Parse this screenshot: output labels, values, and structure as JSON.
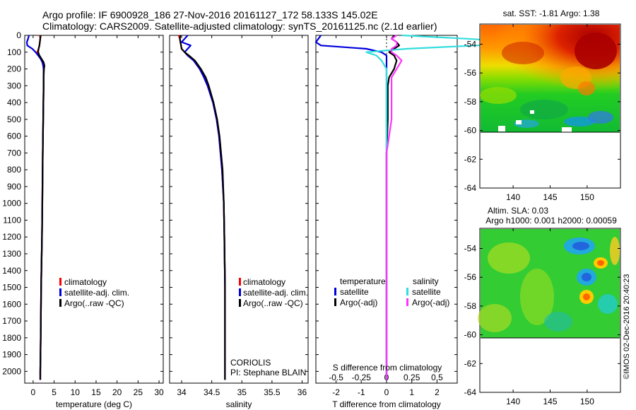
{
  "header": {
    "line1": "Argo profile: IF 6900928_186 27-Nov-2016 20161127_172 58.133S 145.02E",
    "line2": "Climatology: CARS2009. Satellite-adjusted climatology: synTS_20161125.nc (2.1d earlier)"
  },
  "watermark": "©IMOS 02-Dec-2016 20:40:23",
  "colors": {
    "climatology": "#ff0000",
    "satellite": "#0000dd",
    "argo": "#000000",
    "sat_salinity": "#33dddd",
    "argo_salinity": "#ff33ff"
  },
  "profile_plots": {
    "ylim": [
      2070,
      0
    ],
    "yticks": [
      0,
      100,
      200,
      300,
      400,
      500,
      600,
      700,
      800,
      900,
      1000,
      1100,
      1200,
      1300,
      1400,
      1500,
      1600,
      1700,
      1800,
      1900,
      2000
    ],
    "ytick_labels": [
      "0",
      "100",
      "200",
      "300",
      "400",
      "500",
      "600",
      "700",
      "800",
      "900",
      "1000",
      "1100",
      "1200",
      "1300",
      "1400",
      "1500",
      "1600",
      "1700",
      "1800",
      "1900",
      "2000"
    ]
  },
  "chart_data": [
    {
      "type": "line",
      "id": "temperature",
      "xlabel": "temperature (deg C)",
      "xlim": [
        -2,
        31
      ],
      "xticks": [
        0,
        5,
        10,
        15,
        20,
        25,
        30
      ],
      "xtick_labels": [
        "0",
        "5",
        "10",
        "15",
        "20",
        "25",
        "30"
      ],
      "legend": [
        "climatology",
        "satellite-adj. clim.",
        "Argo(..raw -QC)"
      ],
      "depth": [
        0,
        20,
        40,
        60,
        80,
        100,
        120,
        140,
        160,
        180,
        200,
        250,
        300,
        400,
        500,
        700,
        1000,
        1200,
        1500,
        1800,
        2000,
        2050
      ],
      "series": [
        {
          "name": "climatology",
          "values": [
            1.6,
            1.7,
            1.6,
            1.5,
            1.3,
            1.0,
            1.2,
            1.8,
            2.2,
            2.4,
            2.5,
            2.5,
            2.5,
            2.45,
            2.4,
            2.3,
            2.2,
            2.1,
            1.9,
            1.8,
            1.7,
            1.7
          ]
        },
        {
          "name": "satellite-adj. clim.",
          "values": [
            -1.0,
            -1.2,
            -1.5,
            -1.4,
            -0.2,
            0.6,
            1.2,
            1.8,
            2.2,
            2.4,
            2.5,
            2.5,
            2.5,
            2.45,
            2.4,
            2.3,
            2.2,
            2.1,
            1.9,
            1.8,
            1.7,
            1.7
          ]
        },
        {
          "name": "Argo(..raw -QC)",
          "values": [
            1.8,
            1.7,
            1.6,
            1.5,
            1.3,
            1.2,
            1.5,
            2.0,
            2.5,
            2.7,
            2.6,
            2.5,
            2.5,
            2.45,
            2.4,
            2.3,
            2.2,
            2.1,
            1.9,
            1.8,
            1.7,
            1.7
          ]
        }
      ],
      "annotations": []
    },
    {
      "type": "line",
      "id": "salinity",
      "xlabel": "salinity",
      "xlim": [
        33.8,
        36.1
      ],
      "xticks": [
        34,
        34.5,
        35,
        35.5,
        36
      ],
      "xtick_labels": [
        "34",
        "34.5",
        "35",
        "35.5",
        "36"
      ],
      "legend": [
        "climatology",
        "satellite-adj. clim.",
        "Argo(..raw -QC)"
      ],
      "depth": [
        0,
        20,
        40,
        60,
        80,
        100,
        120,
        150,
        200,
        250,
        300,
        400,
        500,
        600,
        800,
        1000,
        1200,
        1500,
        1800,
        2000,
        2050
      ],
      "series": [
        {
          "name": "climatology",
          "values": [
            33.95,
            33.97,
            33.98,
            33.99,
            34.0,
            34.05,
            34.1,
            34.2,
            34.3,
            34.37,
            34.43,
            34.52,
            34.58,
            34.62,
            34.67,
            34.7,
            34.71,
            34.72,
            34.72,
            34.72,
            34.72
          ]
        },
        {
          "name": "satellite-adj. clim.",
          "values": [
            34.1,
            34.05,
            34.0,
            34.15,
            34.1,
            34.05,
            34.1,
            34.2,
            34.3,
            34.37,
            34.43,
            34.52,
            34.58,
            34.62,
            34.67,
            34.7,
            34.71,
            34.72,
            34.72,
            34.72,
            34.72
          ]
        },
        {
          "name": "Argo(..raw -QC)",
          "values": [
            33.98,
            33.97,
            33.98,
            33.99,
            34.0,
            34.05,
            34.12,
            34.22,
            34.32,
            34.4,
            34.45,
            34.53,
            34.59,
            34.63,
            34.68,
            34.7,
            34.71,
            34.72,
            34.72,
            34.72,
            34.72
          ]
        }
      ],
      "annotations": [
        "CORIOLIS",
        "PI: Stephane BLAIN"
      ]
    },
    {
      "type": "line",
      "id": "difference",
      "xlabel": "T difference from climatology",
      "xlabel_top": "S difference from climatology",
      "xlim": [
        -2.8,
        2.8
      ],
      "xticks": [
        -2,
        -1,
        0,
        1,
        2
      ],
      "xtick_labels": [
        "-2",
        "-1",
        "0",
        "1",
        "2"
      ],
      "s_ticks": [
        -0.5,
        -0.25,
        0,
        0.25,
        0.5
      ],
      "s_tick_labels": [
        "-0.5",
        "-0.25",
        "0",
        "0.25",
        "0.5"
      ],
      "legend_headers": [
        "temperature",
        "salinity"
      ],
      "legend": [
        "satellite",
        "Argo(-adj)",
        "satellite",
        "Argo(-adj)"
      ],
      "depth": [
        0,
        20,
        40,
        60,
        80,
        100,
        120,
        150,
        200,
        250,
        300,
        400,
        500,
        700,
        1000,
        1500,
        2000,
        2050
      ],
      "series": [
        {
          "name": "T satellite",
          "values": [
            -2.6,
            -2.7,
            -2.8,
            -2.6,
            -0.8,
            -0.2,
            0,
            0,
            0,
            0,
            0,
            0,
            0,
            0,
            0,
            0,
            0,
            0
          ]
        },
        {
          "name": "T Argo",
          "values": [
            0.3,
            0.2,
            0.4,
            0.5,
            0.3,
            0.1,
            0.3,
            0.4,
            0.3,
            0.1,
            0.05,
            0.05,
            0.05,
            0,
            0,
            0,
            0,
            0
          ]
        },
        {
          "name": "S satellite",
          "values": [
            0.15,
            0.8,
            1.3,
            0.9,
            0.2,
            -0.2,
            -0.1,
            -0.05,
            0,
            0,
            0,
            0,
            0,
            0,
            0,
            0,
            0,
            0
          ]
        },
        {
          "name": "S Argo",
          "values": [
            0.1,
            0.05,
            0.1,
            0.1,
            0.05,
            0.05,
            0.1,
            0.15,
            0.1,
            0.05,
            0.05,
            0.05,
            0.05,
            0,
            0,
            0,
            0,
            0
          ]
        }
      ]
    }
  ],
  "maps": [
    {
      "id": "sst",
      "title": "sat. SST: -1.81 Argo: 1.38",
      "yticks": [
        -54,
        -56,
        -58,
        -60,
        -62,
        -64
      ],
      "ytick_labels": [
        "-54",
        "-56",
        "-58",
        "-60",
        "-62",
        "-64"
      ],
      "xticks": [
        140,
        145,
        150
      ],
      "xtick_labels": [
        "140",
        "145",
        "150"
      ]
    },
    {
      "id": "sla",
      "title": "Altim. SLA: 0.03",
      "subtitle": "Argo h1000: 0.001 h2000: 0.00059",
      "yticks": [
        -54,
        -56,
        -58,
        -60,
        -62,
        -64
      ],
      "ytick_labels": [
        "-54",
        "-56",
        "-58",
        "-60",
        "-62",
        "-64"
      ],
      "xticks": [
        140,
        145,
        150
      ],
      "xtick_labels": [
        "140",
        "145",
        "150"
      ]
    }
  ]
}
